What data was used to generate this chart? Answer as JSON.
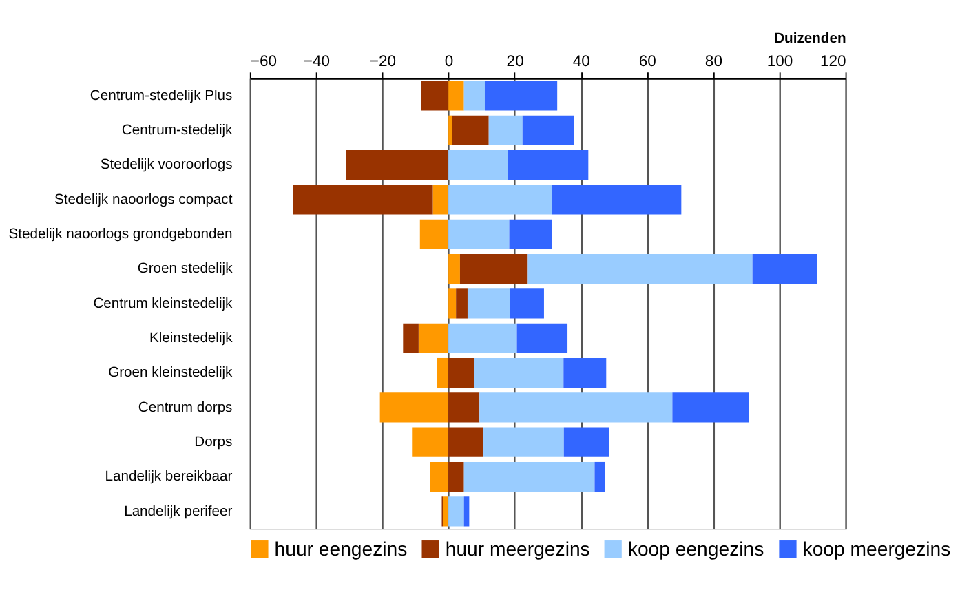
{
  "chart_data": {
    "type": "bar",
    "orientation": "horizontal",
    "stacked": true,
    "xlabel": "Duizenden",
    "categories": [
      "Centrum-stedelijk Plus",
      "Centrum-stedelijk",
      "Stedelijk vooroorlogs",
      "Stedelijk naoorlogs compact",
      "Stedelijk naoorlogs grondgebonden",
      "Groen stedelijk",
      "Centrum kleinstedelijk",
      "Kleinstedelijk",
      "Groen kleinstedelijk",
      "Centrum dorps",
      "Dorps",
      "Landelijk bereikbaar",
      "Landelijk perifeer"
    ],
    "series": [
      {
        "name": "huur eengezins",
        "color": "#ff9900",
        "values": [
          4.7,
          1.2,
          0,
          -4.7,
          -8.6,
          3.5,
          2.3,
          -9,
          -3.5,
          -20.7,
          -11,
          -5.5,
          -1.6
        ]
      },
      {
        "name": "huur meergezins",
        "color": "#993300",
        "values": [
          -8.2,
          11,
          -30.9,
          -42.2,
          0,
          20.3,
          3.5,
          -4.7,
          7.8,
          9.4,
          10.6,
          4.7,
          -0.4
        ]
      },
      {
        "name": "koop eengezins",
        "color": "#99ccff",
        "values": [
          6.3,
          10.2,
          18,
          31.3,
          18.4,
          68.1,
          12.9,
          20.7,
          27,
          58.3,
          24.3,
          39.5,
          4.7
        ]
      },
      {
        "name": "koop meergezins",
        "color": "#3366ff",
        "values": [
          21.9,
          15.6,
          24.3,
          39.1,
          12.9,
          19.6,
          10.2,
          15.3,
          12.9,
          23.1,
          13.7,
          3.1,
          1.6
        ]
      }
    ],
    "xlim": [
      -60,
      120
    ],
    "xticks": [
      -60,
      -40,
      -20,
      0,
      20,
      40,
      60,
      80,
      100,
      120
    ],
    "grid": true,
    "legend": "bottom"
  }
}
